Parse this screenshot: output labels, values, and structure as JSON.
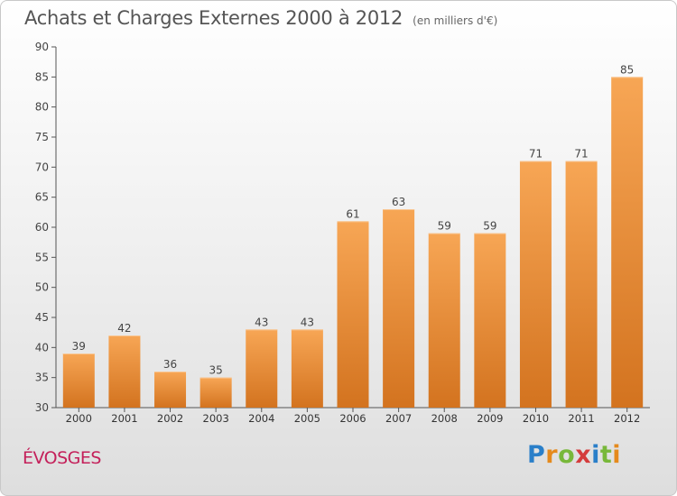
{
  "title": "Achats et Charges Externes 2000 à 2012",
  "subtitle": "(en milliers d'€)",
  "commune": "ÉVOSGES",
  "logo": {
    "letters": [
      "P",
      "r",
      "o",
      "x",
      "i",
      "t",
      "i"
    ],
    "colors": [
      "#2a7fc9",
      "#e58a1c",
      "#78b83a",
      "#d43c3c",
      "#2a7fc9",
      "#78b83a",
      "#e58a1c"
    ]
  },
  "colors": {
    "bar_top": "#f7a655",
    "bar_bottom": "#d3731f",
    "label": "#444444",
    "axis": "#555555"
  },
  "chart_data": {
    "type": "bar",
    "categories": [
      "2000",
      "2001",
      "2002",
      "2003",
      "2004",
      "2005",
      "2006",
      "2007",
      "2008",
      "2009",
      "2010",
      "2011",
      "2012"
    ],
    "values": [
      39,
      42,
      36,
      35,
      43,
      43,
      61,
      63,
      59,
      59,
      71,
      71,
      85
    ],
    "title": "Achats et Charges Externes 2000 à 2012",
    "ylim": [
      30,
      90
    ],
    "yticks": [
      30,
      35,
      40,
      45,
      50,
      55,
      60,
      65,
      70,
      75,
      80,
      85,
      90
    ],
    "grid": false,
    "legend": "none"
  }
}
